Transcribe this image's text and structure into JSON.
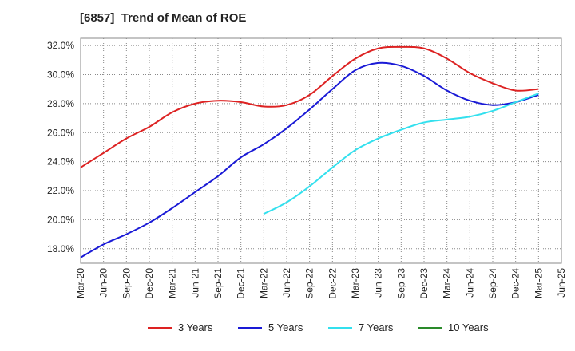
{
  "chart_data": {
    "type": "line",
    "title": "[6857]  Trend of Mean of ROE",
    "xlabel": "",
    "ylabel": "",
    "x_ticks": [
      "Mar-20",
      "Jun-20",
      "Sep-20",
      "Dec-20",
      "Mar-21",
      "Jun-21",
      "Sep-21",
      "Dec-21",
      "Mar-22",
      "Jun-22",
      "Sep-22",
      "Dec-22",
      "Mar-23",
      "Jun-23",
      "Sep-23",
      "Dec-23",
      "Mar-24",
      "Jun-24",
      "Sep-24",
      "Dec-24",
      "Mar-25",
      "Jun-25"
    ],
    "y_ticks": [
      "18.0%",
      "20.0%",
      "22.0%",
      "24.0%",
      "26.0%",
      "28.0%",
      "30.0%",
      "32.0%"
    ],
    "ylim": [
      17.0,
      32.5
    ],
    "grid": true,
    "legend_position": "bottom",
    "series": [
      {
        "name": "3 Years",
        "color": "#dd2222",
        "x": [
          "Mar-20",
          "Jun-20",
          "Sep-20",
          "Dec-20",
          "Mar-21",
          "Jun-21",
          "Sep-21",
          "Dec-21",
          "Mar-22",
          "Jun-22",
          "Sep-22",
          "Dec-22",
          "Mar-23",
          "Jun-23",
          "Sep-23",
          "Dec-23",
          "Mar-24",
          "Jun-24",
          "Sep-24",
          "Dec-24",
          "Mar-25"
        ],
        "values": [
          23.6,
          24.6,
          25.6,
          26.4,
          27.4,
          28.0,
          28.2,
          28.1,
          27.8,
          27.9,
          28.6,
          29.9,
          31.1,
          31.8,
          31.9,
          31.8,
          31.1,
          30.1,
          29.4,
          28.9,
          29.0
        ]
      },
      {
        "name": "5 Years",
        "color": "#1a1ad6",
        "x": [
          "Mar-20",
          "Jun-20",
          "Sep-20",
          "Dec-20",
          "Mar-21",
          "Jun-21",
          "Sep-21",
          "Dec-21",
          "Mar-22",
          "Jun-22",
          "Sep-22",
          "Dec-22",
          "Mar-23",
          "Jun-23",
          "Sep-23",
          "Dec-23",
          "Mar-24",
          "Jun-24",
          "Sep-24",
          "Dec-24",
          "Mar-25"
        ],
        "values": [
          17.4,
          18.3,
          19.0,
          19.8,
          20.8,
          21.9,
          23.0,
          24.3,
          25.2,
          26.3,
          27.6,
          29.0,
          30.3,
          30.8,
          30.6,
          29.9,
          28.9,
          28.2,
          27.9,
          28.1,
          28.6
        ]
      },
      {
        "name": "7 Years",
        "color": "#33e0ee",
        "x": [
          "Mar-22",
          "Jun-22",
          "Sep-22",
          "Dec-22",
          "Mar-23",
          "Jun-23",
          "Sep-23",
          "Dec-23",
          "Mar-24",
          "Jun-24",
          "Sep-24",
          "Dec-24",
          "Mar-25"
        ],
        "values": [
          20.4,
          21.2,
          22.3,
          23.6,
          24.8,
          25.6,
          26.2,
          26.7,
          26.9,
          27.1,
          27.5,
          28.1,
          28.7
        ]
      },
      {
        "name": "10 Years",
        "color": "#2a8a2a",
        "x": [],
        "values": []
      }
    ]
  }
}
